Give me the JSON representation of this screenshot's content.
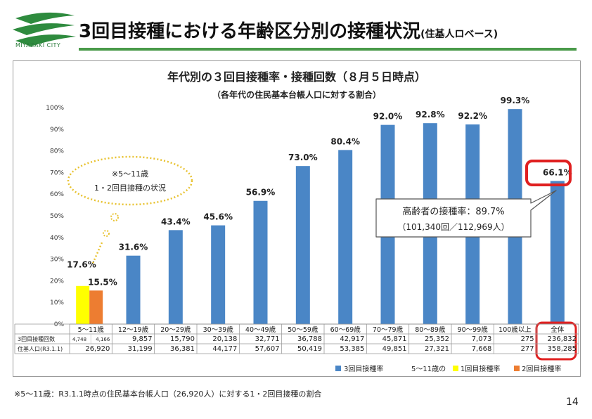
{
  "header": {
    "title": "3回目接種における年齢区分別の接種状況",
    "title_suffix": "(住基人ロベース)",
    "logo_text": "MIYAZAKI CITY"
  },
  "chart_data": {
    "type": "bar",
    "title": "年代別の３回目接種率・接種回数（８月５日時点）",
    "subtitle": "（各年代の住民基本台帳人口に対する割合）",
    "categories": [
      "5～11歳",
      "12～19歳",
      "20～29歳",
      "30～39歳",
      "40～49歳",
      "50～59歳",
      "60～69歳",
      "70～79歳",
      "80～89歳",
      "90～99歳",
      "100歳以上",
      "全体"
    ],
    "series": [
      {
        "name": "3回目接種率",
        "color": "#4a86c6",
        "values": [
          null,
          31.6,
          43.4,
          45.6,
          56.9,
          73.0,
          80.4,
          92.0,
          92.8,
          92.2,
          99.3,
          66.1
        ]
      },
      {
        "name": "1回目接種率",
        "color": "#ffff00",
        "values": [
          17.6,
          null,
          null,
          null,
          null,
          null,
          null,
          null,
          null,
          null,
          null,
          null
        ]
      },
      {
        "name": "2回目接種率",
        "color": "#ed7d31",
        "values": [
          15.5,
          null,
          null,
          null,
          null,
          null,
          null,
          null,
          null,
          null,
          null,
          null
        ]
      }
    ],
    "value_labels": [
      "17.6%",
      "15.5%",
      "31.6%",
      "43.4%",
      "45.6%",
      "56.9%",
      "73.0%",
      "80.4%",
      "92.0%",
      "92.8%",
      "92.2%",
      "99.3%",
      "66.1%"
    ],
    "ylim": [
      0,
      100
    ],
    "yticks": [
      "0%",
      "10%",
      "20%",
      "30%",
      "40%",
      "50%",
      "60%",
      "70%",
      "80%",
      "90%",
      "100%"
    ],
    "grid": false,
    "legend_position": "bottom-right",
    "legend": {
      "s3": "3回目接種率",
      "group_label": "5～11歳の",
      "s1": "1回目接種率",
      "s2": "2回目接種率"
    },
    "table": {
      "row_labels": [
        "3回目接種回数",
        "住基人口(R3.1.1)"
      ],
      "doses_5_11": [
        "4,748",
        "4,166"
      ],
      "doses": [
        "9,857",
        "15,790",
        "20,138",
        "32,771",
        "36,788",
        "42,917",
        "45,871",
        "25,352",
        "7,073",
        "275",
        "236,832"
      ],
      "population": [
        "26,920",
        "31,199",
        "36,381",
        "44,177",
        "57,607",
        "50,419",
        "53,385",
        "49,851",
        "27,321",
        "7,668",
        "277",
        "358,285"
      ]
    },
    "callouts": {
      "cloud": [
        "※5～11歳",
        "1・2回目接種の状況"
      ],
      "box": [
        "高齢者の接種率：89.7%",
        "（101,340回／112,969人）"
      ]
    }
  },
  "footnote": "※5～11歳：R3.1.1時点の住民基本台帳人口（26,920人）に対する1・2回目接種の割合",
  "page_number": "14"
}
